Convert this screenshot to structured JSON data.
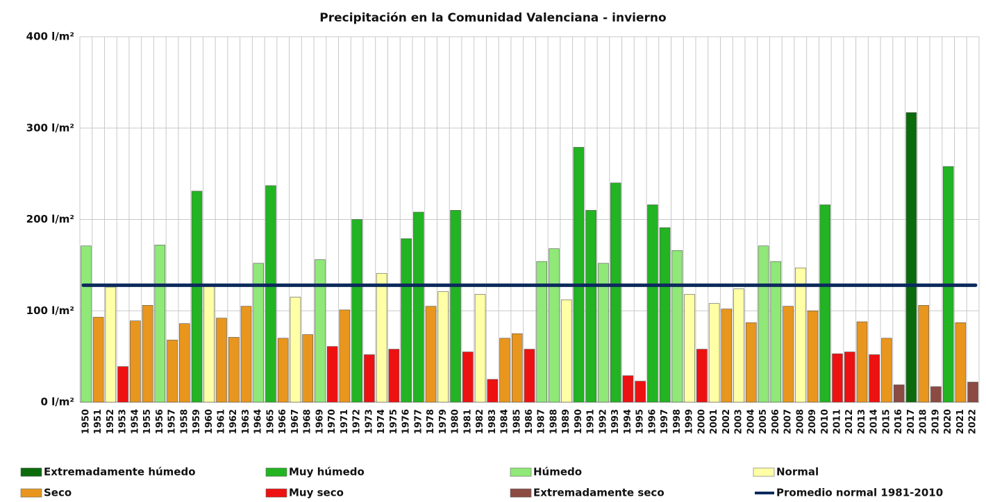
{
  "chart_data": {
    "type": "bar",
    "title": "Precipitación en la Comunidad Valenciana - invierno",
    "categories": [
      "1950",
      "1951",
      "1952",
      "1953",
      "1954",
      "1955",
      "1956",
      "1957",
      "1958",
      "1959",
      "1960",
      "1961",
      "1962",
      "1963",
      "1964",
      "1965",
      "1966",
      "1967",
      "1968",
      "1969",
      "1970",
      "1971",
      "1972",
      "1973",
      "1974",
      "1975",
      "1976",
      "1977",
      "1978",
      "1979",
      "1980",
      "1981",
      "1982",
      "1983",
      "1984",
      "1985",
      "1986",
      "1987",
      "1988",
      "1989",
      "1990",
      "1991",
      "1992",
      "1993",
      "1994",
      "1995",
      "1996",
      "1997",
      "1998",
      "1999",
      "2000",
      "2001",
      "2002",
      "2003",
      "2004",
      "2005",
      "2006",
      "2007",
      "2008",
      "2009",
      "2010",
      "2011",
      "2012",
      "2013",
      "2014",
      "2015",
      "2016",
      "2017",
      "2018",
      "2019",
      "2020",
      "2021",
      "2022"
    ],
    "series": [
      {
        "name": "Extremadamente húmedo",
        "color": "#0b6b0b",
        "values": [
          null,
          null,
          null,
          null,
          null,
          null,
          null,
          null,
          null,
          null,
          null,
          null,
          null,
          null,
          null,
          null,
          null,
          null,
          null,
          null,
          null,
          null,
          null,
          null,
          null,
          null,
          null,
          null,
          null,
          null,
          null,
          null,
          null,
          null,
          null,
          null,
          null,
          null,
          null,
          null,
          null,
          null,
          null,
          null,
          null,
          null,
          null,
          null,
          null,
          null,
          null,
          null,
          null,
          null,
          null,
          null,
          null,
          null,
          null,
          null,
          null,
          null,
          null,
          null,
          null,
          null,
          null,
          317,
          null,
          null,
          null,
          null,
          null
        ]
      },
      {
        "name": "Muy húmedo",
        "color": "#22b422",
        "values": [
          null,
          null,
          null,
          null,
          null,
          null,
          null,
          null,
          null,
          231,
          null,
          null,
          null,
          null,
          null,
          237,
          null,
          null,
          null,
          null,
          null,
          null,
          200,
          null,
          null,
          null,
          179,
          208,
          null,
          null,
          210,
          null,
          null,
          null,
          null,
          null,
          null,
          null,
          null,
          null,
          279,
          210,
          null,
          240,
          null,
          null,
          216,
          191,
          null,
          null,
          null,
          null,
          null,
          null,
          null,
          null,
          null,
          null,
          null,
          null,
          216,
          null,
          null,
          null,
          null,
          null,
          null,
          null,
          null,
          null,
          258,
          null,
          null
        ]
      },
      {
        "name": "Húmedo",
        "color": "#8fe878",
        "values": [
          171,
          null,
          null,
          null,
          null,
          null,
          172,
          null,
          null,
          null,
          null,
          null,
          null,
          null,
          152,
          null,
          null,
          null,
          null,
          156,
          null,
          null,
          null,
          null,
          null,
          null,
          null,
          null,
          null,
          null,
          null,
          null,
          null,
          null,
          null,
          null,
          null,
          154,
          168,
          null,
          null,
          null,
          152,
          null,
          null,
          null,
          null,
          null,
          166,
          null,
          null,
          null,
          null,
          null,
          null,
          171,
          154,
          null,
          null,
          null,
          null,
          null,
          null,
          null,
          null,
          null,
          null,
          null,
          null,
          null,
          null,
          null,
          null
        ]
      },
      {
        "name": "Normal",
        "color": "#ffffa6",
        "values": [
          null,
          null,
          126,
          null,
          null,
          null,
          null,
          null,
          null,
          null,
          127,
          null,
          null,
          null,
          null,
          null,
          null,
          115,
          null,
          null,
          null,
          null,
          null,
          null,
          141,
          null,
          null,
          null,
          null,
          121,
          null,
          null,
          118,
          null,
          null,
          null,
          null,
          null,
          null,
          112,
          null,
          null,
          null,
          null,
          null,
          null,
          null,
          null,
          null,
          118,
          null,
          108,
          null,
          124,
          null,
          null,
          null,
          null,
          147,
          null,
          null,
          null,
          null,
          null,
          null,
          null,
          null,
          null,
          null,
          null,
          null,
          null,
          null
        ]
      },
      {
        "name": "Seco",
        "color": "#e8961e",
        "values": [
          null,
          93,
          null,
          null,
          89,
          106,
          null,
          68,
          86,
          null,
          null,
          92,
          71,
          105,
          null,
          null,
          70,
          null,
          74,
          null,
          null,
          101,
          null,
          null,
          null,
          null,
          null,
          null,
          105,
          null,
          null,
          null,
          null,
          null,
          70,
          75,
          null,
          null,
          null,
          null,
          null,
          null,
          null,
          null,
          null,
          null,
          null,
          null,
          null,
          null,
          null,
          null,
          102,
          null,
          87,
          null,
          null,
          105,
          null,
          100,
          null,
          null,
          null,
          88,
          null,
          70,
          null,
          null,
          106,
          null,
          null,
          87,
          null
        ]
      },
      {
        "name": "Muy seco",
        "color": "#ee1111",
        "values": [
          null,
          null,
          null,
          39,
          null,
          null,
          null,
          null,
          null,
          null,
          null,
          null,
          null,
          null,
          null,
          null,
          null,
          null,
          null,
          null,
          61,
          null,
          null,
          52,
          null,
          58,
          null,
          null,
          null,
          null,
          null,
          55,
          null,
          25,
          null,
          null,
          58,
          null,
          null,
          null,
          null,
          null,
          null,
          null,
          29,
          23,
          null,
          null,
          null,
          null,
          58,
          null,
          null,
          null,
          null,
          null,
          null,
          null,
          null,
          null,
          null,
          53,
          55,
          null,
          52,
          null,
          null,
          null,
          null,
          null,
          null,
          null,
          null
        ]
      },
      {
        "name": "Extremadamente seco",
        "color": "#8b4a42",
        "values": [
          null,
          null,
          null,
          null,
          null,
          null,
          null,
          null,
          null,
          null,
          null,
          null,
          null,
          null,
          null,
          null,
          null,
          null,
          null,
          null,
          null,
          null,
          null,
          null,
          null,
          null,
          null,
          null,
          null,
          null,
          null,
          null,
          null,
          null,
          null,
          null,
          null,
          null,
          null,
          null,
          null,
          null,
          null,
          null,
          null,
          null,
          null,
          null,
          null,
          null,
          null,
          null,
          null,
          null,
          null,
          null,
          null,
          null,
          null,
          null,
          null,
          null,
          null,
          null,
          null,
          null,
          19,
          null,
          null,
          17,
          null,
          null,
          22
        ]
      }
    ],
    "reference_line": {
      "name": "Promedio normal 1981-2010",
      "value": 128,
      "color": "#0d2a5c"
    },
    "ylim": [
      0,
      400
    ],
    "yticks": [
      {
        "value": 0,
        "label": "0 l/m²"
      },
      {
        "value": 100,
        "label": "100 l/m²"
      },
      {
        "value": 200,
        "label": "200 l/m²"
      },
      {
        "value": 300,
        "label": "300 l/m²"
      },
      {
        "value": 400,
        "label": "400 l/m²"
      }
    ],
    "grid": true
  }
}
